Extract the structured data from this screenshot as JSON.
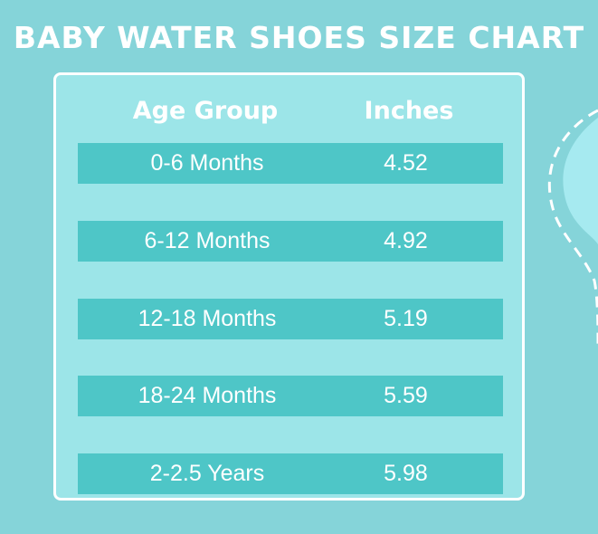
{
  "title": "BABY WATER SHOES SIZE CHART",
  "table": {
    "headers": [
      "Age Group",
      "Inches"
    ],
    "rows": [
      {
        "age": "0-6 Months",
        "inches": "4.52"
      },
      {
        "age": "6-12 Months",
        "inches": "4.92"
      },
      {
        "age": "12-18 Months",
        "inches": "5.19"
      },
      {
        "age": "18-24 Months",
        "inches": "5.59"
      },
      {
        "age": "2-2.5 Years",
        "inches": "5.98"
      }
    ]
  },
  "colors": {
    "background": "#85d4d9",
    "panel": "#9ce5e8",
    "row": "#4ec6c7",
    "text": "#ffffff"
  }
}
